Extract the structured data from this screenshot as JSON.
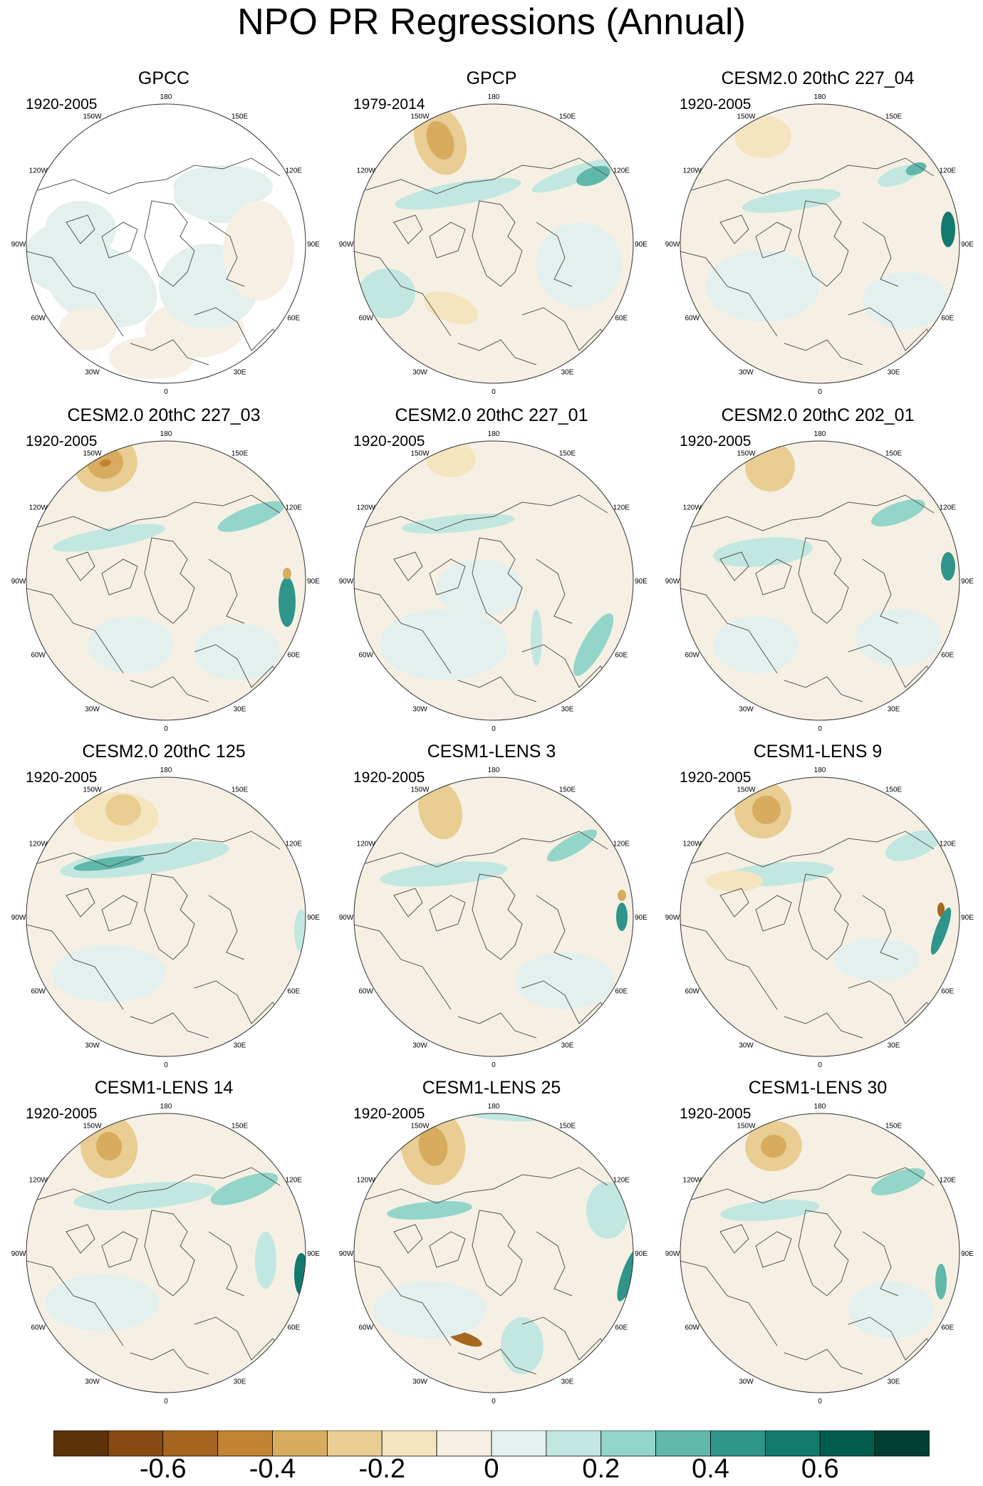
{
  "title": "NPO PR Regressions (Annual)",
  "lon_labels": [
    "180",
    "150E",
    "120E",
    "90E",
    "60E",
    "30E",
    "0",
    "30W",
    "60W",
    "90W",
    "120W",
    "150W"
  ],
  "panels": [
    {
      "title": "GPCC",
      "period": "1920-2005"
    },
    {
      "title": "GPCP",
      "period": "1979-2014"
    },
    {
      "title": "CESM2.0 20thC 227_04",
      "period": "1920-2005"
    },
    {
      "title": "CESM2.0 20thC 227_03",
      "period": "1920-2005"
    },
    {
      "title": "CESM2.0 20thC 227_01",
      "period": "1920-2005"
    },
    {
      "title": "CESM2.0 20thC 202_01",
      "period": "1920-2005"
    },
    {
      "title": "CESM2.0 20thC 125",
      "period": "1920-2005"
    },
    {
      "title": "CESM1-LENS 3",
      "period": "1920-2005"
    },
    {
      "title": "CESM1-LENS 9",
      "period": "1920-2005"
    },
    {
      "title": "CESM1-LENS 14",
      "period": "1920-2005"
    },
    {
      "title": "CESM1-LENS 25",
      "period": "1920-2005"
    },
    {
      "title": "CESM1-LENS 30",
      "period": "1920-2005"
    }
  ],
  "colorbar": {
    "colors": [
      "#5e3208",
      "#864a12",
      "#a5661f",
      "#c28434",
      "#d7ac5f",
      "#e9cd92",
      "#f5e5bf",
      "#f6f0e4",
      "#e3f0ee",
      "#c1e7e0",
      "#93d5c9",
      "#5fb8aa",
      "#2f958a",
      "#127a6d",
      "#035d4f",
      "#013f32"
    ],
    "labels": [
      "-0.6",
      "-0.4",
      "-0.2",
      "0",
      "0.2",
      "0.4",
      "0.6"
    ]
  }
}
